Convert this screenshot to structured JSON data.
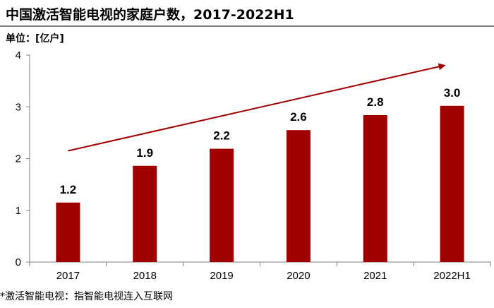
{
  "title": "中国激活智能电视的家庭户数，2017-2022H1",
  "unit_label": "单位：[亿户]",
  "footnote": "*激活智能电视：指智能电视连入互联网",
  "colors": {
    "bar": "#A00000",
    "arrow": "#A00000",
    "axis": "#7f7f7f"
  },
  "chart_data": {
    "type": "bar",
    "categories": [
      "2017",
      "2018",
      "2019",
      "2020",
      "2021",
      "2022H1"
    ],
    "values": [
      1.15,
      1.86,
      2.19,
      2.55,
      2.84,
      3.02
    ],
    "data_labels": [
      "1.2",
      "1.9",
      "2.2",
      "2.6",
      "2.8",
      "3.0"
    ],
    "yticks": [
      "0",
      "1",
      "2",
      "3",
      "4"
    ],
    "ylim": [
      0,
      4
    ],
    "xlabel": "",
    "ylabel": "",
    "grid": false,
    "legend": "none",
    "annotations": [
      {
        "type": "trend-arrow",
        "from": {
          "x": "2017",
          "y": 2.15
        },
        "to": {
          "x": "2022H1",
          "y": 3.8
        }
      }
    ]
  }
}
